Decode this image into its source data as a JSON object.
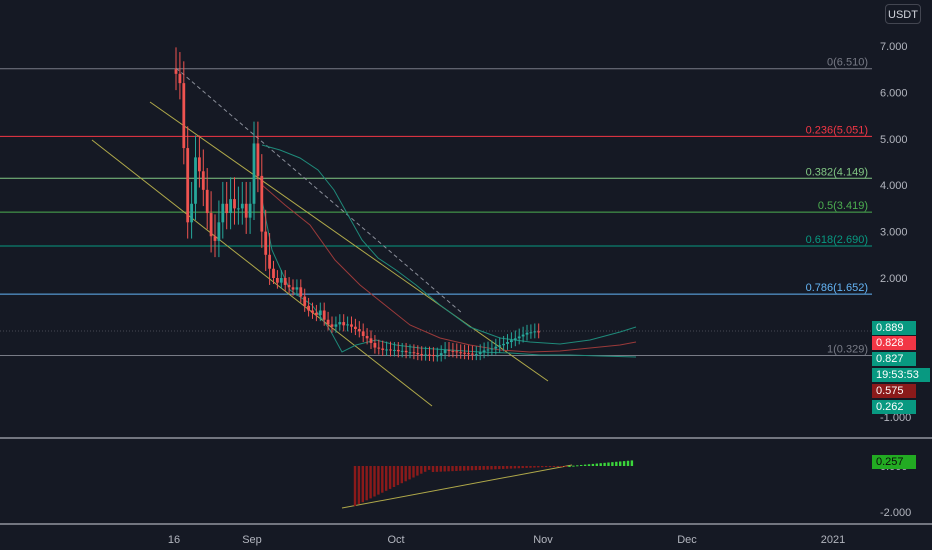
{
  "currency_label": "USDT",
  "colors": {
    "background": "#151924",
    "candle_up": "#26a69a",
    "candle_down": "#ef5350",
    "bollinger": "#1f8a7a",
    "ma_red": "#9b3a3a",
    "trendline": "#b0a94a",
    "dashed_trend": "#8a8e99",
    "hist_neg": "#8b1a1a",
    "hist_pos": "#3bd63b"
  },
  "chart_data": [
    {
      "type": "candlestick",
      "name": "price",
      "y_ticks": [
        "7.000",
        "6.000",
        "5.000",
        "4.000",
        "3.000",
        "2.000",
        "1.000",
        "-1.000"
      ],
      "x_ticks": [
        "16",
        "Sep",
        "Oct",
        "Nov",
        "Dec",
        "2021"
      ],
      "ylim": [
        -1.3,
        7.8
      ],
      "fib_levels": [
        {
          "label": "0(6.510)",
          "value": 6.51,
          "color": "#787b86"
        },
        {
          "label": "0.236(5.051)",
          "value": 5.051,
          "color": "#f23645"
        },
        {
          "label": "0.382(4.149)",
          "value": 4.149,
          "color": "#81c784"
        },
        {
          "label": "0.5(3.419)",
          "value": 3.419,
          "color": "#4caf50"
        },
        {
          "label": "0.618(2.690)",
          "value": 2.69,
          "color": "#089981"
        },
        {
          "label": "0.786(1.652)",
          "value": 1.652,
          "color": "#64b5f6"
        },
        {
          "label": "1(0.329)",
          "value": 0.329,
          "color": "#787b86"
        }
      ],
      "last_price_tags": [
        {
          "label": "0.889",
          "value": 0.889,
          "color": "#089981"
        },
        {
          "label": "0.828",
          "value": 0.828,
          "color": "#f23645"
        },
        {
          "label": "0.827",
          "value": 0.827,
          "color": "#089981"
        },
        {
          "label": "19:53:53",
          "color": "#089981"
        },
        {
          "label": "0.575",
          "color": "#8b1a1a"
        },
        {
          "label": "0.262",
          "color": "#089981"
        }
      ]
    },
    {
      "type": "histogram",
      "name": "oscillator",
      "y_ticks": [
        "0.000",
        "-2.000"
      ],
      "last_value_label": "0.257",
      "ylim": [
        -2.2,
        0.3
      ]
    }
  ]
}
